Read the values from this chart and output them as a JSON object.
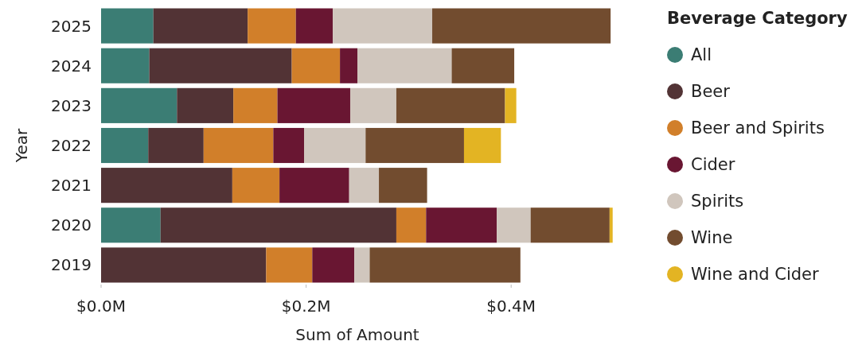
{
  "chart_data": {
    "type": "bar",
    "orientation": "horizontal",
    "stacked": true,
    "xlabel": "Sum of Amount",
    "ylabel": "Year",
    "legend_title": "Beverage Category",
    "legend": "right",
    "grid": false,
    "categories": [
      "2025",
      "2024",
      "2023",
      "2022",
      "2021",
      "2020",
      "2019"
    ],
    "xlim": [
      0,
      0.5
    ],
    "xticks": [
      {
        "value": 0,
        "label": "$0.0M"
      },
      {
        "value": 0.2,
        "label": "$0.2M"
      },
      {
        "value": 0.4,
        "label": "$0.4M"
      }
    ],
    "series": [
      {
        "name": "All",
        "color": "#3b7d74",
        "values": [
          0.051,
          0.047,
          0.074,
          0.046,
          null,
          0.058,
          null
        ]
      },
      {
        "name": "Beer",
        "color": "#523335",
        "values": [
          0.092,
          0.139,
          0.055,
          0.054,
          0.128,
          0.23,
          0.161
        ]
      },
      {
        "name": "Beer and Spirits",
        "color": "#d17f2a",
        "values": [
          0.047,
          0.047,
          0.043,
          0.068,
          0.046,
          0.029,
          0.045
        ]
      },
      {
        "name": "Cider",
        "color": "#691632",
        "values": [
          0.036,
          0.017,
          0.071,
          0.03,
          0.068,
          0.069,
          0.041
        ]
      },
      {
        "name": "Spirits",
        "color": "#d0c6bd",
        "values": [
          0.097,
          0.092,
          0.045,
          0.06,
          0.029,
          0.033,
          0.015
        ]
      },
      {
        "name": "Wine",
        "color": "#724c2f",
        "values": [
          0.174,
          0.061,
          0.106,
          0.096,
          0.047,
          0.077,
          0.147
        ]
      },
      {
        "name": "Wine and Cider",
        "color": "#e3b423",
        "values": [
          null,
          null,
          0.011,
          0.036,
          null,
          0.003,
          null
        ]
      }
    ]
  }
}
